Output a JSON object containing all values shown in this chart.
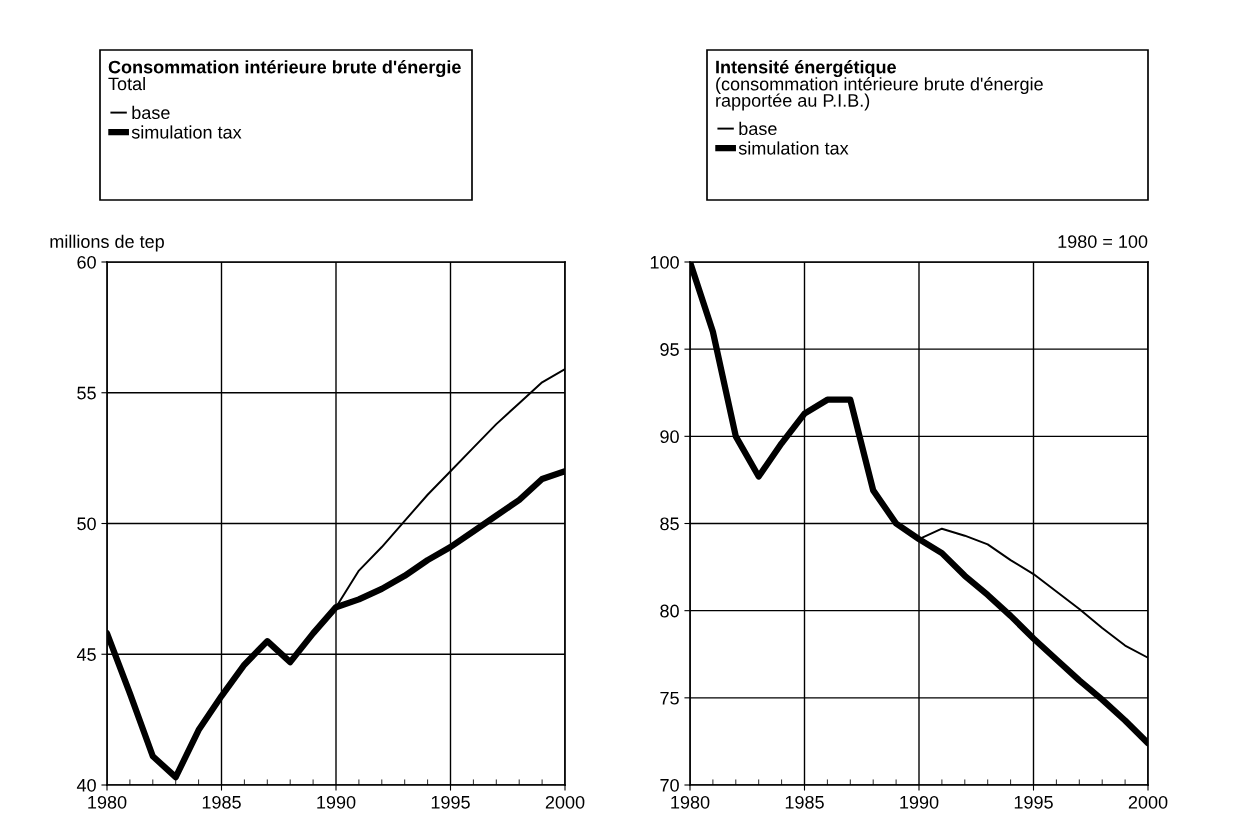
{
  "chart_data": [
    {
      "type": "line",
      "title": "Consommation intérieure brute d'énergie",
      "subtitle": "Total",
      "ylabel": "millions de tep",
      "x": [
        1980,
        1981,
        1982,
        1983,
        1984,
        1985,
        1986,
        1987,
        1988,
        1989,
        1990,
        1991,
        1992,
        1993,
        1994,
        1995,
        1996,
        1997,
        1998,
        1999,
        2000
      ],
      "series": [
        {
          "name": "base",
          "color": "#000000",
          "values": [
            45.8,
            43.5,
            41.1,
            40.3,
            42.1,
            43.4,
            44.6,
            45.5,
            44.7,
            45.8,
            46.8,
            48.2,
            49.1,
            50.1,
            51.1,
            52.0,
            52.9,
            53.8,
            54.6,
            55.4,
            55.9
          ]
        },
        {
          "name": "simulation tax",
          "color": "#000000",
          "values": [
            45.8,
            43.5,
            41.1,
            40.3,
            42.1,
            43.4,
            44.6,
            45.5,
            44.7,
            45.8,
            46.8,
            47.1,
            47.5,
            48.0,
            48.6,
            49.1,
            49.7,
            50.3,
            50.9,
            51.7,
            52.0
          ]
        }
      ],
      "xlim": [
        1980,
        2000
      ],
      "xticks": [
        1980,
        1985,
        1990,
        1995,
        2000
      ],
      "ylim": [
        40,
        60
      ],
      "yticks": [
        40,
        45,
        50,
        55,
        60
      ],
      "grid": true,
      "legend": "top left",
      "marker": "none",
      "line_style": "solid"
    },
    {
      "type": "line",
      "title": "Intensité énergétique",
      "subtitle": "(consommation intérieure brute d'énergie\nrapportée au P.I.B.)",
      "annotations": [
        "1980 = 100"
      ],
      "x": [
        1980,
        1981,
        1982,
        1983,
        1984,
        1985,
        1986,
        1987,
        1988,
        1989,
        1990,
        1991,
        1992,
        1993,
        1994,
        1995,
        1996,
        1997,
        1998,
        1999,
        2000
      ],
      "series": [
        {
          "name": "base",
          "color": "#000000",
          "values": [
            100,
            96.0,
            90.0,
            87.7,
            89.6,
            91.3,
            92.1,
            92.1,
            86.9,
            85.0,
            84.1,
            84.7,
            84.3,
            83.8,
            82.9,
            82.1,
            81.1,
            80.1,
            79.0,
            78.0,
            77.3
          ]
        },
        {
          "name": "simulation tax",
          "color": "#000000",
          "values": [
            100,
            96.0,
            90.0,
            87.7,
            89.6,
            91.3,
            92.1,
            92.1,
            86.9,
            85.0,
            84.1,
            83.3,
            82.0,
            80.9,
            79.7,
            78.4,
            77.2,
            76.0,
            74.9,
            73.7,
            72.4
          ]
        }
      ],
      "xlim": [
        1980,
        2000
      ],
      "xticks": [
        1980,
        1985,
        1990,
        1995,
        2000
      ],
      "ylim": [
        70,
        100
      ],
      "yticks": [
        70,
        75,
        80,
        85,
        90,
        95,
        100
      ],
      "grid": true,
      "legend": "top left",
      "marker": "none",
      "line_style": "solid"
    }
  ]
}
